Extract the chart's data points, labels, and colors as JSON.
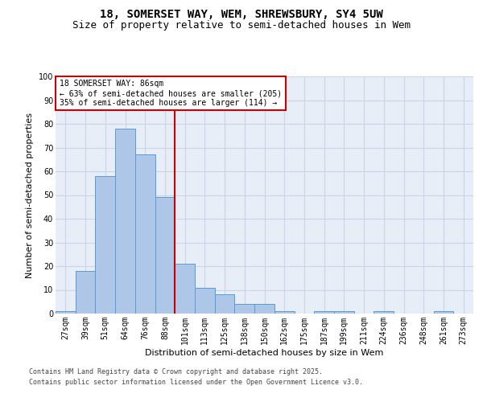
{
  "title_line1": "18, SOMERSET WAY, WEM, SHREWSBURY, SY4 5UW",
  "title_line2": "Size of property relative to semi-detached houses in Wem",
  "xlabel": "Distribution of semi-detached houses by size in Wem",
  "ylabel": "Number of semi-detached properties",
  "categories": [
    "27sqm",
    "39sqm",
    "51sqm",
    "64sqm",
    "76sqm",
    "88sqm",
    "101sqm",
    "113sqm",
    "125sqm",
    "138sqm",
    "150sqm",
    "162sqm",
    "175sqm",
    "187sqm",
    "199sqm",
    "211sqm",
    "224sqm",
    "236sqm",
    "248sqm",
    "261sqm",
    "273sqm"
  ],
  "values": [
    1,
    18,
    58,
    78,
    67,
    49,
    21,
    11,
    8,
    4,
    4,
    1,
    0,
    1,
    1,
    0,
    1,
    0,
    0,
    1,
    0
  ],
  "bar_color": "#aec6e8",
  "bar_edge_color": "#5b9bd5",
  "grid_color": "#c8d4e8",
  "background_color": "#e8eef7",
  "vline_x": 5.5,
  "vline_color": "#cc0000",
  "annotation_title": "18 SOMERSET WAY: 86sqm",
  "annotation_line1": "← 63% of semi-detached houses are smaller (205)",
  "annotation_line2": "35% of semi-detached houses are larger (114) →",
  "annotation_box_color": "#ffffff",
  "annotation_edge_color": "#cc0000",
  "ylim": [
    0,
    100
  ],
  "yticks": [
    0,
    10,
    20,
    30,
    40,
    50,
    60,
    70,
    80,
    90,
    100
  ],
  "footer_line1": "Contains HM Land Registry data © Crown copyright and database right 2025.",
  "footer_line2": "Contains public sector information licensed under the Open Government Licence v3.0.",
  "title_fontsize": 10,
  "subtitle_fontsize": 9,
  "tick_fontsize": 7,
  "ylabel_fontsize": 8,
  "xlabel_fontsize": 8,
  "annotation_fontsize": 7,
  "footer_fontsize": 6
}
